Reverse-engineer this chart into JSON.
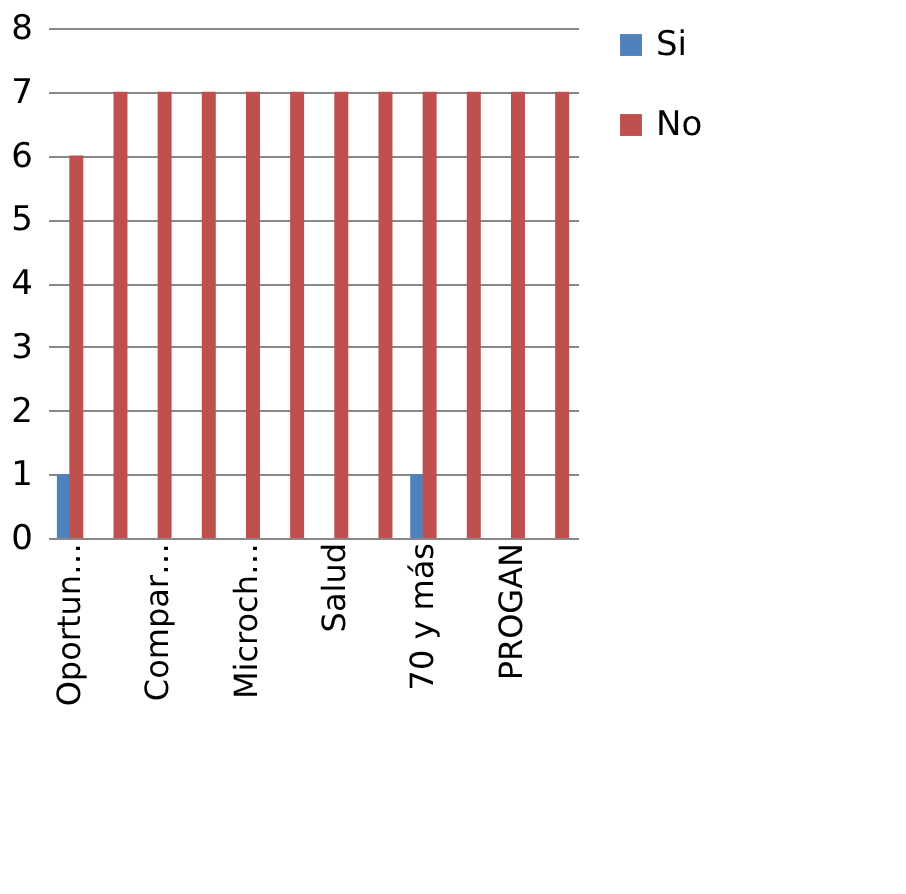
{
  "chart_data": {
    "type": "bar",
    "categories": [
      "Oportun…",
      null,
      "Compar…",
      null,
      "Microch…",
      null,
      "Salud",
      null,
      "70 y más",
      null,
      "PROGAN",
      null
    ],
    "series": [
      {
        "name": "Si",
        "color": "#4f81bd",
        "values": [
          1,
          0,
          0,
          0,
          0,
          0,
          0,
          0,
          1,
          0,
          0,
          0
        ]
      },
      {
        "name": "No",
        "color": "#c0504d",
        "values": [
          6,
          7,
          7,
          7,
          7,
          7,
          7,
          7,
          7,
          7,
          7,
          7
        ]
      }
    ],
    "ylim": [
      0,
      8
    ],
    "yticks": [
      0,
      1,
      2,
      3,
      4,
      5,
      6,
      7,
      8
    ],
    "grid": "y",
    "legend": "right"
  }
}
